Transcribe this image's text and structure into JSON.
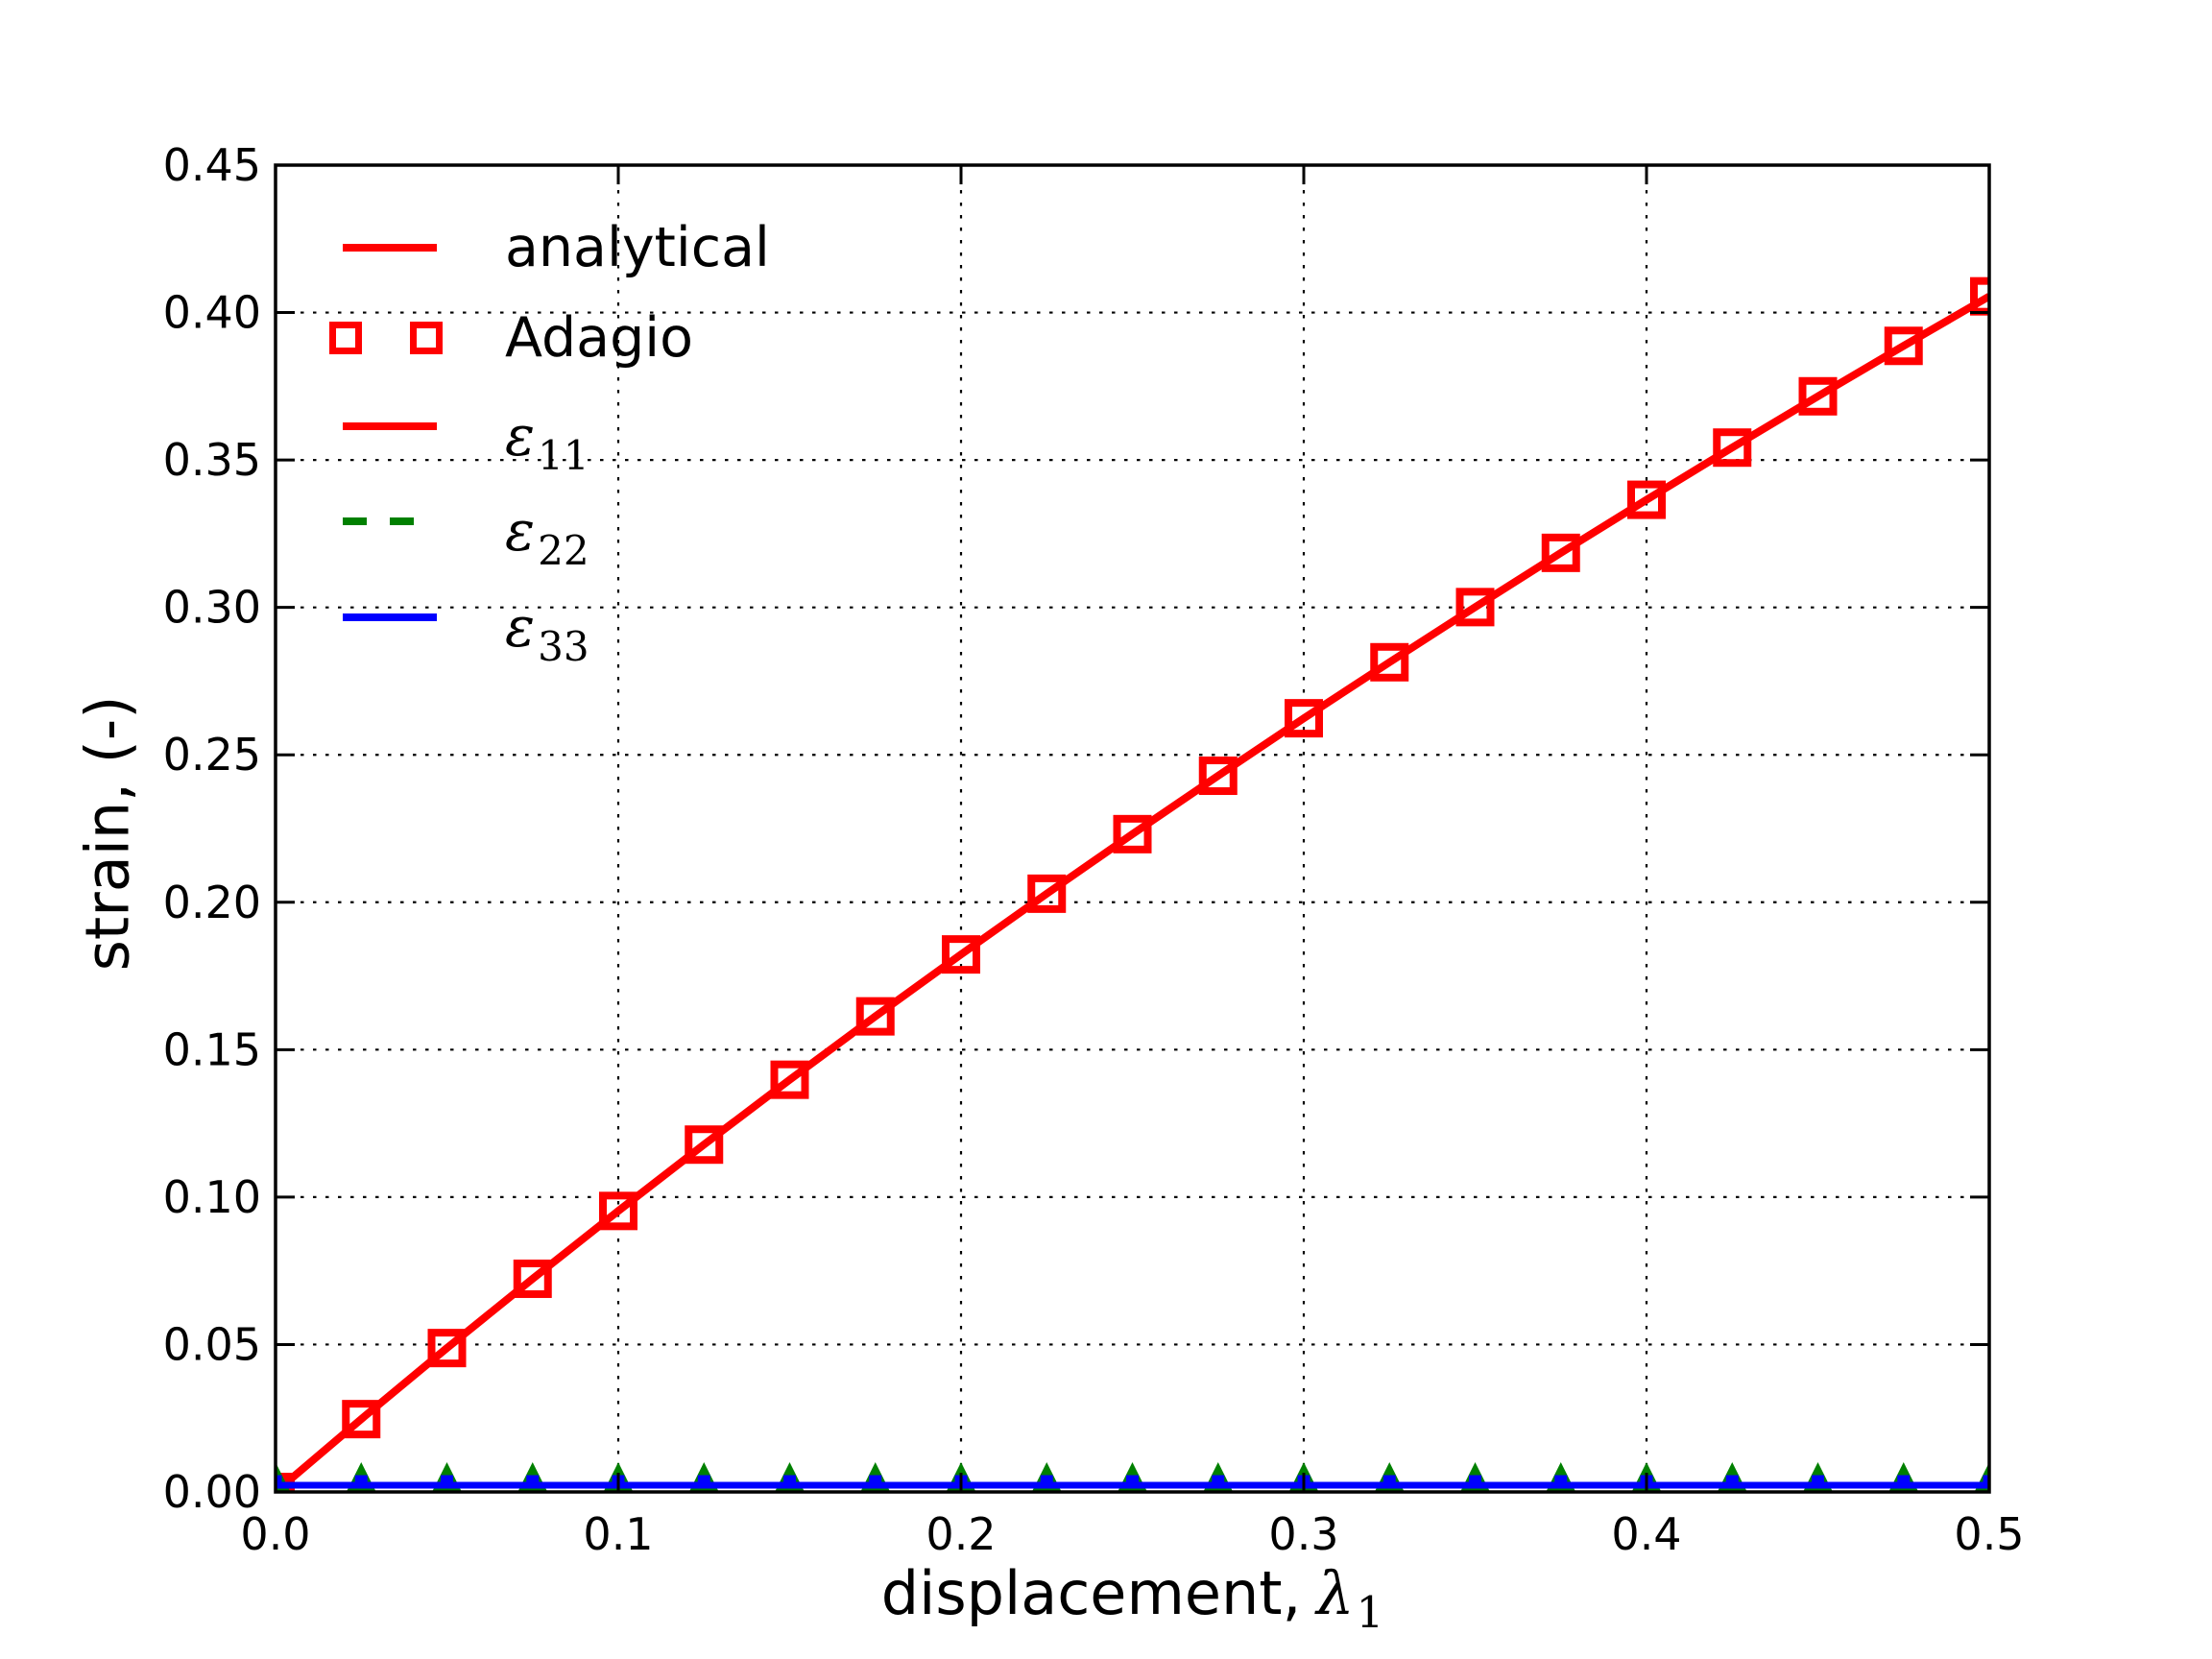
{
  "figure": {
    "background": "#ffffff",
    "xlabel_text": "displacement,",
    "xlabel_symbol": "λ",
    "xlabel_sub": "1",
    "ylabel": "strain, (-)",
    "legend": {
      "items": [
        {
          "label": "analytical",
          "type": "line",
          "color": "#ff0000",
          "dash": "solid"
        },
        {
          "label": "Adagio",
          "type": "marker",
          "color": "#ff0000",
          "marker": "open-square"
        },
        {
          "symbol": "ε",
          "sub": "11",
          "type": "line",
          "color": "#ff0000",
          "dash": "solid"
        },
        {
          "symbol": "ε",
          "sub": "22",
          "type": "line",
          "color": "#008000",
          "dash": "dashed"
        },
        {
          "symbol": "ε",
          "sub": "33",
          "type": "line",
          "color": "#0000ff",
          "dash": "solid"
        }
      ]
    }
  },
  "chart_data": {
    "type": "line",
    "title": "",
    "xlabel": "displacement, λ1",
    "ylabel": "strain, (-)",
    "xlim": [
      0.0,
      0.5
    ],
    "ylim": [
      0.0,
      0.45
    ],
    "grid": "dotted",
    "legend_position": "upper-left",
    "xticks": {
      "values": [
        0.0,
        0.1,
        0.2,
        0.3,
        0.4,
        0.5
      ],
      "labels": [
        "0.0",
        "0.1",
        "0.2",
        "0.3",
        "0.4",
        "0.5"
      ]
    },
    "yticks": {
      "values": [
        0.0,
        0.05,
        0.1,
        0.15,
        0.2,
        0.25,
        0.3,
        0.35,
        0.4,
        0.45
      ],
      "labels": [
        "0.00",
        "0.05",
        "0.10",
        "0.15",
        "0.20",
        "0.25",
        "0.30",
        "0.35",
        "0.40",
        "0.45"
      ]
    },
    "x": [
      0.0,
      0.025,
      0.05,
      0.075,
      0.1,
      0.125,
      0.15,
      0.175,
      0.2,
      0.225,
      0.25,
      0.275,
      0.3,
      0.325,
      0.35,
      0.375,
      0.4,
      0.425,
      0.45,
      0.475,
      0.5
    ],
    "series": [
      {
        "name": "analytical ε11",
        "color": "#ff0000",
        "line": "solid",
        "marker": null,
        "y": [
          0.0,
          0.0247,
          0.0488,
          0.0723,
          0.0953,
          0.1178,
          0.1398,
          0.1613,
          0.1823,
          0.2029,
          0.2231,
          0.2429,
          0.2624,
          0.2814,
          0.3001,
          0.3185,
          0.3365,
          0.3542,
          0.3716,
          0.3887,
          0.4055
        ]
      },
      {
        "name": "Adagio ε11",
        "color": "#ff0000",
        "line": null,
        "marker": "open-square",
        "y": [
          0.0,
          0.0247,
          0.0488,
          0.0723,
          0.0953,
          0.1178,
          0.1398,
          0.1613,
          0.1823,
          0.2029,
          0.2231,
          0.2429,
          0.2624,
          0.2814,
          0.3001,
          0.3185,
          0.3365,
          0.3542,
          0.3716,
          0.3887,
          0.4055
        ]
      },
      {
        "name": "analytical ε22",
        "color": "#008000",
        "line": "dashed",
        "marker": null,
        "y": [
          0,
          0,
          0,
          0,
          0,
          0,
          0,
          0,
          0,
          0,
          0,
          0,
          0,
          0,
          0,
          0,
          0,
          0,
          0,
          0,
          0
        ]
      },
      {
        "name": "Adagio ε22",
        "color": "#008000",
        "line": null,
        "marker": "triangle-up",
        "y": [
          0,
          0,
          0,
          0,
          0,
          0,
          0,
          0,
          0,
          0,
          0,
          0,
          0,
          0,
          0,
          0,
          0,
          0,
          0,
          0,
          0
        ]
      },
      {
        "name": "analytical ε33",
        "color": "#0000ff",
        "line": "solid",
        "marker": null,
        "y": [
          0,
          0,
          0,
          0,
          0,
          0,
          0,
          0,
          0,
          0,
          0,
          0,
          0,
          0,
          0,
          0,
          0,
          0,
          0,
          0,
          0
        ]
      },
      {
        "name": "Adagio ε33",
        "color": "#0000ff",
        "line": null,
        "marker": "filled-square",
        "y": [
          0,
          0,
          0,
          0,
          0,
          0,
          0,
          0,
          0,
          0,
          0,
          0,
          0,
          0,
          0,
          0,
          0,
          0,
          0,
          0,
          0
        ]
      }
    ]
  }
}
